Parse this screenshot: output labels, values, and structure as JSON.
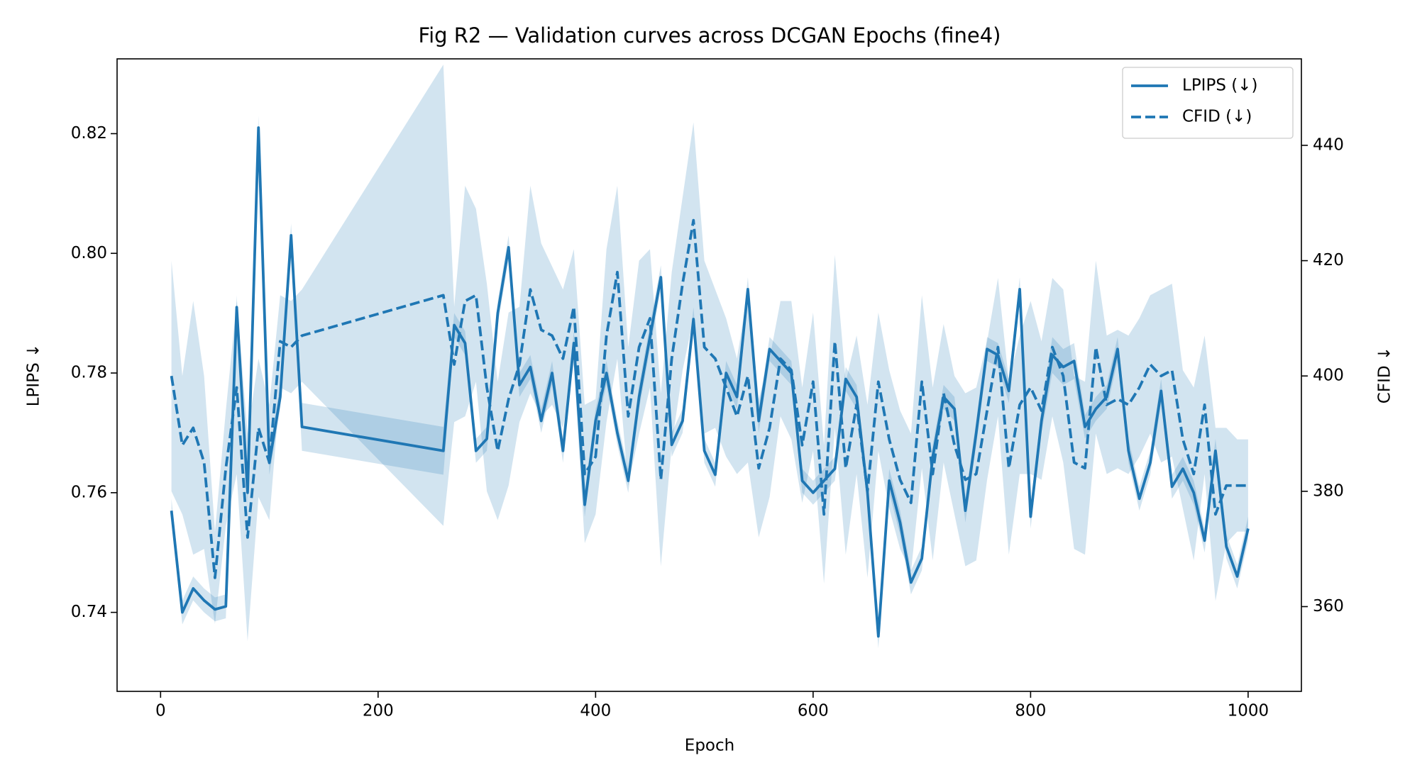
{
  "chart_data": {
    "type": "line",
    "title": "Fig R2 — Validation curves across DCGAN Epochs (fine4)",
    "xlabel": "Epoch",
    "ylabel": "LPIPS ↓",
    "y2label": "CFID ↓",
    "x": [
      10,
      20,
      30,
      40,
      50,
      60,
      70,
      80,
      90,
      100,
      110,
      120,
      130,
      260,
      270,
      280,
      290,
      300,
      310,
      320,
      330,
      340,
      350,
      360,
      370,
      380,
      390,
      400,
      410,
      420,
      430,
      440,
      450,
      460,
      470,
      480,
      490,
      500,
      510,
      520,
      530,
      540,
      550,
      560,
      570,
      580,
      590,
      600,
      610,
      620,
      630,
      640,
      650,
      660,
      670,
      680,
      690,
      700,
      710,
      720,
      730,
      740,
      750,
      760,
      770,
      780,
      790,
      800,
      810,
      820,
      830,
      840,
      850,
      860,
      870,
      880,
      890,
      900,
      910,
      920,
      930,
      940,
      950,
      960,
      970,
      980,
      990,
      1000
    ],
    "series": [
      {
        "name": "LPIPS (↓)",
        "color": "#1f77b4",
        "dash": false,
        "axis": "y",
        "values": [
          0.757,
          0.74,
          0.744,
          0.742,
          0.7405,
          0.741,
          0.791,
          0.76,
          0.821,
          0.765,
          0.776,
          0.803,
          0.771,
          0.767,
          0.788,
          0.785,
          0.767,
          0.769,
          0.79,
          0.801,
          0.778,
          0.781,
          0.772,
          0.78,
          0.767,
          0.785,
          0.758,
          0.772,
          0.78,
          0.77,
          0.762,
          0.776,
          0.786,
          0.796,
          0.768,
          0.772,
          0.789,
          0.767,
          0.763,
          0.78,
          0.776,
          0.794,
          0.772,
          0.784,
          0.782,
          0.78,
          0.762,
          0.76,
          0.762,
          0.764,
          0.779,
          0.776,
          0.76,
          0.736,
          0.762,
          0.755,
          0.745,
          0.749,
          0.766,
          0.776,
          0.774,
          0.757,
          0.77,
          0.784,
          0.783,
          0.777,
          0.794,
          0.756,
          0.772,
          0.783,
          0.781,
          0.782,
          0.771,
          0.774,
          0.776,
          0.784,
          0.767,
          0.759,
          0.765,
          0.777,
          0.761,
          0.764,
          0.76,
          0.752,
          0.767,
          0.751,
          0.746,
          0.754
        ],
        "errors": [
          0.002,
          0.002,
          0.002,
          0.002,
          0.002,
          0.002,
          0.002,
          0.002,
          0.002,
          0.002,
          0.002,
          0.002,
          0.004,
          0.004,
          0.002,
          0.002,
          0.002,
          0.002,
          0.002,
          0.002,
          0.002,
          0.002,
          0.002,
          0.002,
          0.002,
          0.002,
          0.002,
          0.002,
          0.002,
          0.002,
          0.002,
          0.002,
          0.002,
          0.002,
          0.002,
          0.002,
          0.002,
          0.002,
          0.002,
          0.002,
          0.002,
          0.002,
          0.002,
          0.002,
          0.002,
          0.002,
          0.002,
          0.002,
          0.002,
          0.002,
          0.002,
          0.002,
          0.002,
          0.002,
          0.002,
          0.002,
          0.002,
          0.002,
          0.002,
          0.002,
          0.002,
          0.002,
          0.002,
          0.002,
          0.002,
          0.002,
          0.002,
          0.002,
          0.002,
          0.003,
          0.003,
          0.003,
          0.002,
          0.002,
          0.002,
          0.002,
          0.002,
          0.002,
          0.002,
          0.002,
          0.002,
          0.002,
          0.002,
          0.002,
          0.002,
          0.002,
          0.002,
          0.002
        ]
      },
      {
        "name": "CFID (↓)",
        "color": "#1f77b4",
        "dash": true,
        "axis": "y2",
        "values": [
          400,
          388,
          391,
          385,
          365,
          384,
          398,
          372,
          391,
          385,
          406,
          405,
          407,
          414,
          402,
          413,
          414,
          398,
          387,
          396,
          402,
          415,
          408,
          407,
          403,
          412,
          383,
          386,
          407,
          418,
          393,
          405,
          410,
          382,
          403,
          416,
          427,
          405,
          403,
          398,
          393,
          400,
          384,
          391,
          403,
          401,
          388,
          399,
          376,
          406,
          384,
          395,
          380,
          399,
          389,
          382,
          378,
          399,
          383,
          397,
          388,
          382,
          383,
          394,
          405,
          384,
          395,
          398,
          394,
          405,
          400,
          385,
          384,
          405,
          395,
          396,
          395,
          398,
          402,
          400,
          401,
          389,
          383,
          395,
          376,
          381,
          381,
          381
        ],
        "errors": [
          20,
          12,
          22,
          15,
          8,
          10,
          15,
          18,
          12,
          10,
          8,
          8,
          8,
          40,
          10,
          20,
          15,
          18,
          12,
          15,
          10,
          18,
          15,
          12,
          12,
          10,
          12,
          10,
          15,
          15,
          12,
          15,
          12,
          15,
          15,
          15,
          17,
          15,
          12,
          12,
          10,
          15,
          12,
          12,
          10,
          12,
          10,
          12,
          12,
          15,
          15,
          12,
          15,
          12,
          12,
          12,
          12,
          15,
          15,
          12,
          12,
          15,
          15,
          12,
          12,
          15,
          12,
          15,
          12,
          12,
          15,
          15,
          15,
          15,
          12,
          12,
          12,
          12,
          12,
          15,
          15,
          12,
          15,
          12,
          15,
          10,
          8,
          8
        ]
      }
    ],
    "xlim": [
      -40,
      1049
    ],
    "xticks": [
      0,
      200,
      400,
      600,
      800,
      1000
    ],
    "ylim": [
      0.7268,
      0.8325
    ],
    "yticks": [
      0.74,
      0.76,
      0.78,
      {
        "value": 0.8,
        "label": "0.80"
      },
      0.82
    ],
    "y2lim": [
      345.3,
      455
    ],
    "y2ticks": [
      360,
      380,
      400,
      420,
      440
    ],
    "band_opacity": 0.2,
    "legend": "upper right",
    "grid": false
  }
}
